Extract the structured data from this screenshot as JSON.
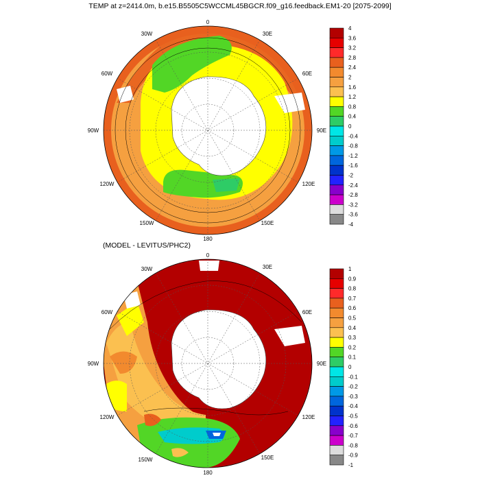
{
  "title": "TEMP at z=2414.0m, b.e15.B5505C5WCCML45BGCR.f09_g16.feedback.EM1-20 [2075-2099]",
  "subtitle": "(MODEL - LEVITUS/PHC2)",
  "longitude_labels": {
    "top": "0",
    "upper_right": "30E",
    "right_upper": "60E",
    "right": "90E",
    "right_lower": "120E",
    "lower_right": "150E",
    "bottom": "180",
    "lower_left": "150W",
    "left_lower": "120W",
    "left": "90W",
    "left_upper": "60W",
    "upper_left": "30W"
  },
  "colorbar_top": {
    "labels": [
      "4",
      "3.6",
      "3.2",
      "2.8",
      "2.4",
      "2",
      "1.6",
      "1.2",
      "0.8",
      "0.4",
      "0",
      "-0.4",
      "-0.8",
      "-1.2",
      "-1.6",
      "-2",
      "-2.4",
      "-2.8",
      "-3.2",
      "-3.6",
      "-4"
    ],
    "colors": [
      "#b30000",
      "#e60000",
      "#ff2a2a",
      "#e8601e",
      "#f28a2e",
      "#f5a040",
      "#fbc050",
      "#ffff00",
      "#52d626",
      "#2ecc66",
      "#00e6e6",
      "#00cccc",
      "#0099e6",
      "#0066dd",
      "#0033cc",
      "#2222ff",
      "#8800cc",
      "#cc00cc",
      "#dddddd",
      "#888888"
    ]
  },
  "colorbar_bottom": {
    "labels": [
      "1",
      "0.9",
      "0.8",
      "0.7",
      "0.6",
      "0.5",
      "0.4",
      "0.3",
      "0.2",
      "0.1",
      "0",
      "-0.1",
      "-0.2",
      "-0.3",
      "-0.4",
      "-0.5",
      "-0.6",
      "-0.7",
      "-0.8",
      "-0.9",
      "-1"
    ],
    "colors": [
      "#b30000",
      "#e60000",
      "#ff2a2a",
      "#e8601e",
      "#f28a2e",
      "#f5a040",
      "#fbc050",
      "#ffff00",
      "#52d626",
      "#2ecc66",
      "#00e6e6",
      "#00cccc",
      "#0099e6",
      "#0066dd",
      "#0033cc",
      "#2222ff",
      "#8800cc",
      "#cc00cc",
      "#dddddd",
      "#888888"
    ]
  }
}
